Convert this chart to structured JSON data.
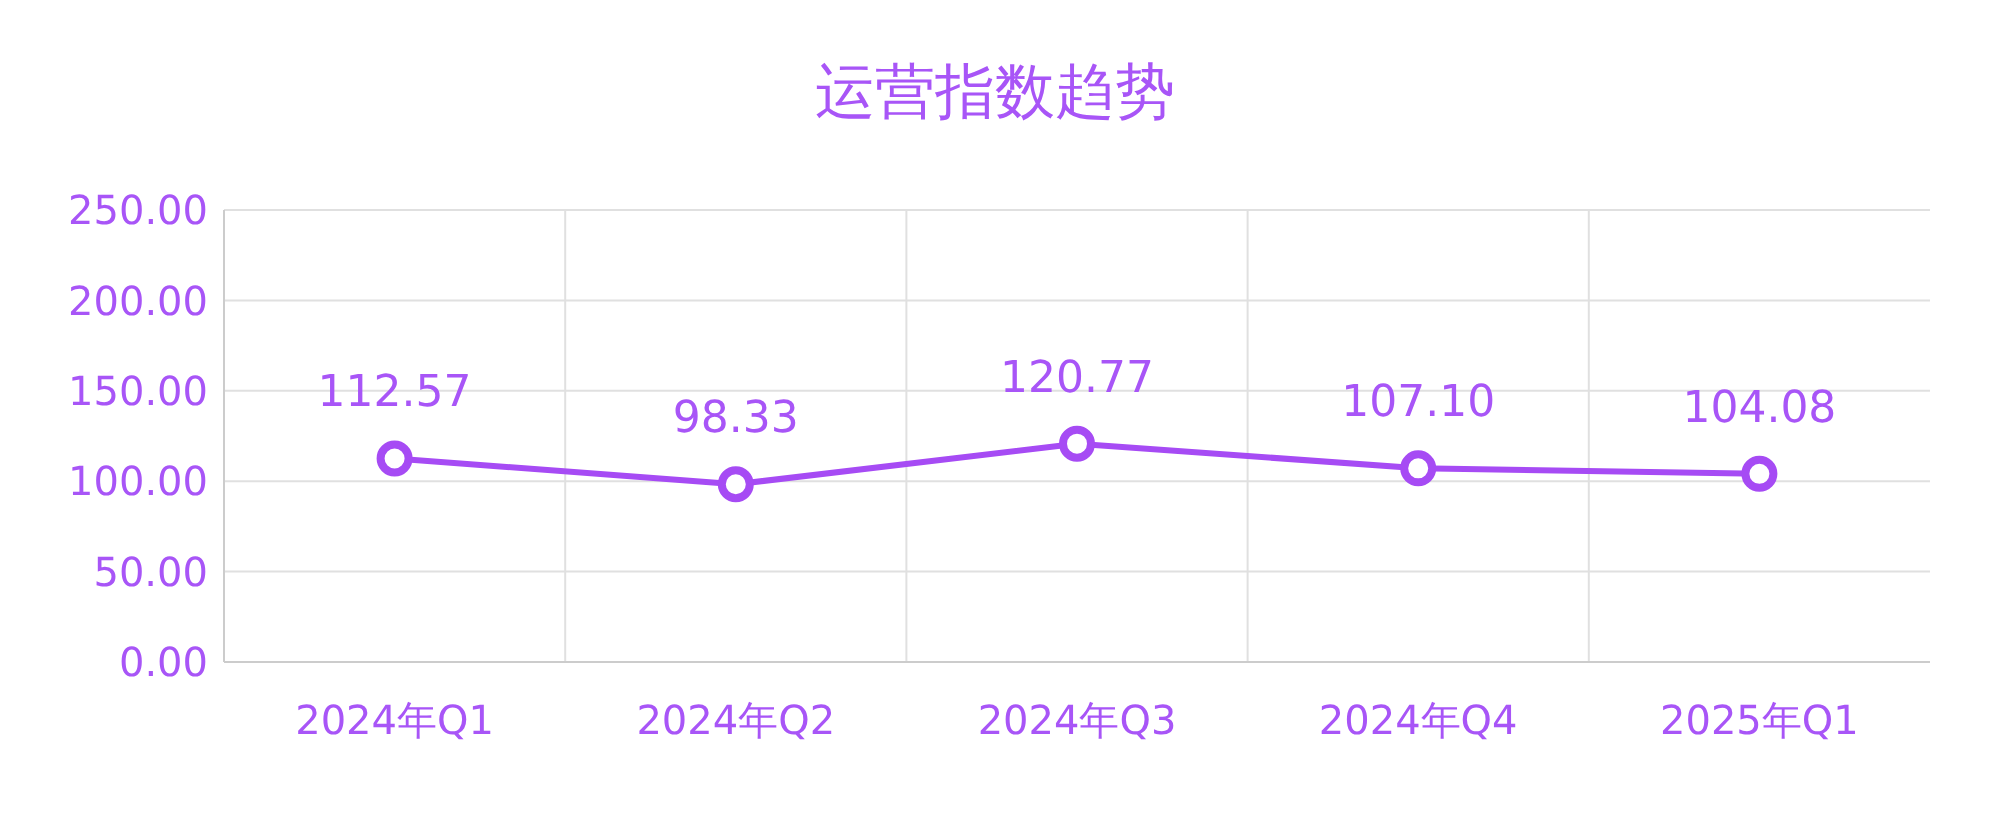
{
  "chart_data": {
    "type": "line",
    "title": "运营指数趋势",
    "categories": [
      "2024年Q1",
      "2024年Q2",
      "2024年Q3",
      "2024年Q4",
      "2025年Q1"
    ],
    "values": [
      112.57,
      98.33,
      120.77,
      107.1,
      104.08
    ],
    "value_labels": [
      "112.57",
      "98.33",
      "120.77",
      "107.10",
      "104.08"
    ],
    "color": "#a64bf4",
    "marker": "circle",
    "line_style": "solid",
    "ylim": [
      0,
      250
    ],
    "yticks": [
      {
        "value": 0,
        "label": "0.00"
      },
      {
        "value": 50,
        "label": "50.00"
      },
      {
        "value": 100,
        "label": "100.00"
      },
      {
        "value": 150,
        "label": "150.00"
      },
      {
        "value": 200,
        "label": "200.00"
      },
      {
        "value": 250,
        "label": "250.00"
      }
    ],
    "grid": true
  }
}
